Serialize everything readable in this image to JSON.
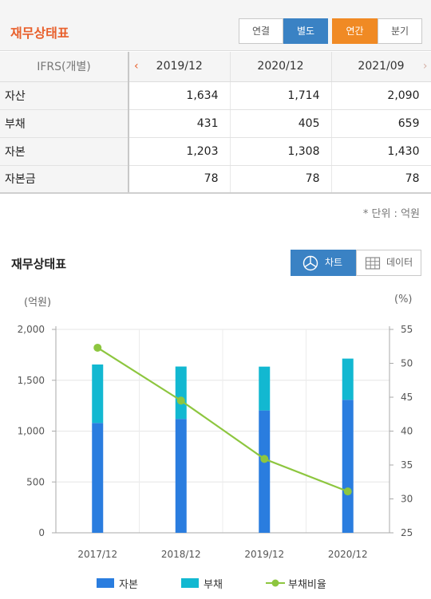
{
  "header": {
    "title": "재무상태표",
    "consolidated_label": "연결",
    "separate_label": "별도",
    "annual_label": "연간",
    "quarter_label": "분기"
  },
  "table": {
    "label_header": "IFRS(개별)",
    "periods": [
      "2019/12",
      "2020/12",
      "2021/09"
    ],
    "rows": [
      {
        "label": "자산",
        "values": [
          "1,634",
          "1,714",
          "2,090"
        ]
      },
      {
        "label": "부채",
        "values": [
          "431",
          "405",
          "659"
        ]
      },
      {
        "label": "자본",
        "values": [
          "1,203",
          "1,308",
          "1,430"
        ]
      },
      {
        "label": "자본금",
        "values": [
          "78",
          "78",
          "78"
        ]
      }
    ],
    "prev_arrow": "‹",
    "next_arrow": "›",
    "unit_note": "* 단위 : 억원"
  },
  "section": {
    "title": "재무상태표",
    "chart_button": "차트",
    "data_button": "데이터"
  },
  "colors": {
    "equity": "#2a7ddf",
    "liability": "#12b8d1",
    "ratio": "#8dc63f",
    "header_accent": "#e8602c",
    "button_blue": "#3a82c4",
    "button_orange": "#f08a24"
  },
  "chart_data": {
    "type": "bar",
    "stacked": true,
    "categories": [
      "2017/12",
      "2018/12",
      "2019/12",
      "2020/12"
    ],
    "series": [
      {
        "name": "자본",
        "type": "bar",
        "values": [
          1080,
          1120,
          1203,
          1308
        ]
      },
      {
        "name": "부채",
        "type": "bar",
        "values": [
          575,
          515,
          431,
          405
        ]
      },
      {
        "name": "부채비율",
        "type": "line",
        "axis": "right",
        "values": [
          52.3,
          44.5,
          35.9,
          31.1
        ]
      }
    ],
    "ylabel_left": "(억원)",
    "ylabel_right": "(%)",
    "ylim_left": [
      0,
      2000
    ],
    "yticks_left": [
      "0",
      "500",
      "1,000",
      "1,500",
      "2,000"
    ],
    "ylim_right": [
      25,
      55
    ],
    "yticks_right": [
      "25",
      "30",
      "35",
      "40",
      "45",
      "50",
      "55"
    ],
    "grid": true,
    "legend": "bottom"
  }
}
